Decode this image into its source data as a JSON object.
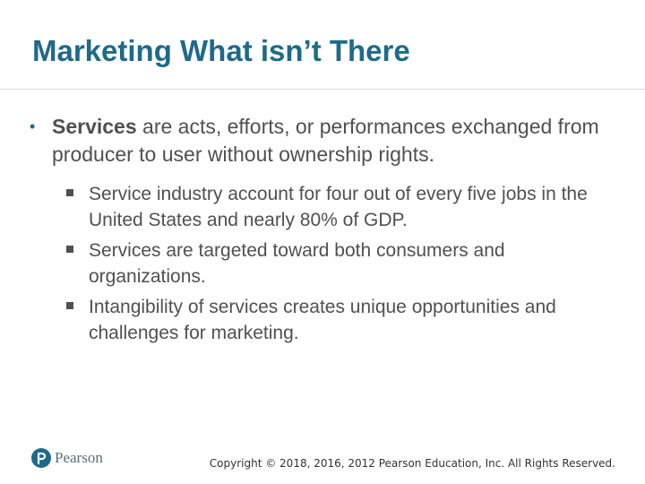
{
  "slide": {
    "title": "Marketing What isn’t There",
    "bullet": {
      "bold": "Services",
      "rest": " are acts, efforts, or performances exchanged from producer to user without ownership rights."
    },
    "sub_bullets": [
      "Service industry account for four out of every five jobs in the United States and nearly 80% of GDP.",
      "Services are targeted toward both consumers and organizations.",
      "Intangibility of services creates unique opportunities and challenges for marketing."
    ]
  },
  "footer": {
    "logo_text": "Pearson",
    "copyright": "Copyright © 2018, 2016, 2012 Pearson Education, Inc. All Rights Reserved."
  },
  "colors": {
    "title": "#1d6a8a",
    "body_text": "#505050",
    "logo": "#1d6a8a"
  }
}
